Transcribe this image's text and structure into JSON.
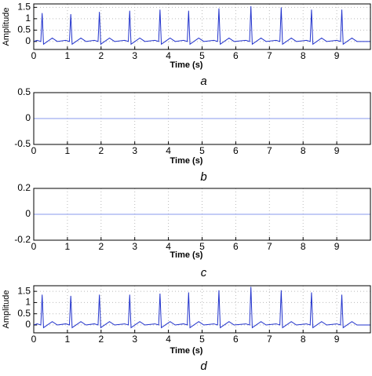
{
  "chart_data": [
    {
      "type": "line",
      "caption": "a",
      "xlabel": "Time (s)",
      "ylabel": "Amplitude",
      "x": [
        0,
        0.1,
        0.21,
        0.25,
        0.29,
        0.55,
        0.7,
        0.95,
        1.06,
        1.1,
        1.14,
        1.4,
        1.55,
        1.8,
        1.91,
        1.95,
        1.99,
        2.25,
        2.4,
        2.7,
        2.81,
        2.85,
        2.89,
        3.15,
        3.3,
        3.6,
        3.71,
        3.75,
        3.79,
        4.05,
        4.2,
        4.45,
        4.56,
        4.6,
        4.64,
        4.9,
        5.05,
        5.35,
        5.46,
        5.5,
        5.54,
        5.8,
        5.95,
        6.3,
        6.41,
        6.45,
        6.49,
        6.75,
        6.9,
        7.2,
        7.31,
        7.35,
        7.39,
        7.65,
        7.8,
        8.1,
        8.21,
        8.25,
        8.29,
        8.55,
        8.7,
        9,
        9.11,
        9.15,
        9.19,
        9.45,
        9.6,
        10
      ],
      "series": [
        {
          "color": "#2233cc",
          "values": [
            0,
            0.05,
            0,
            1.25,
            -0.12,
            0.15,
            0,
            0.05,
            0,
            1.2,
            -0.12,
            0.15,
            0,
            0.05,
            0,
            1.3,
            -0.12,
            0.15,
            0,
            0.05,
            0,
            1.35,
            -0.12,
            0.15,
            0,
            0.05,
            0,
            1.4,
            -0.12,
            0.15,
            0,
            0.05,
            0,
            1.35,
            -0.12,
            0.15,
            0,
            0.05,
            0,
            1.45,
            -0.12,
            0.15,
            0,
            0.05,
            0,
            1.55,
            -0.12,
            0.15,
            0,
            0.05,
            0,
            1.5,
            -0.12,
            0.15,
            0,
            0.05,
            0,
            1.4,
            -0.12,
            0.15,
            0,
            0.05,
            0,
            1.4,
            -0.12,
            0.15,
            0,
            0
          ]
        }
      ],
      "xlim": [
        0,
        10
      ],
      "xticks": [
        0,
        1,
        2,
        3,
        4,
        5,
        6,
        7,
        8,
        9
      ],
      "ylim": [
        -0.35,
        1.65
      ],
      "yticks": [
        0,
        0.5,
        1,
        1.5
      ],
      "grid": true
    },
    {
      "type": "line",
      "caption": "b",
      "xlabel": "Time (s)",
      "x": [
        0,
        10
      ],
      "series": [
        {
          "color": "#8899ee",
          "values": [
            0,
            0
          ]
        }
      ],
      "xlim": [
        0,
        10
      ],
      "xticks": [
        0,
        1,
        2,
        3,
        4,
        5,
        6,
        7,
        8,
        9
      ],
      "ylim": [
        -0.5,
        0.5
      ],
      "yticks": [
        -0.5,
        0,
        0.5
      ],
      "grid": true
    },
    {
      "type": "line",
      "caption": "c",
      "xlabel": "Time (s)",
      "x": [
        0,
        10
      ],
      "series": [
        {
          "color": "#8899ee",
          "values": [
            0,
            0
          ]
        }
      ],
      "xlim": [
        0,
        10
      ],
      "xticks": [
        0,
        1,
        2,
        3,
        4,
        5,
        6,
        7,
        8,
        9
      ],
      "ylim": [
        -0.2,
        0.2
      ],
      "yticks": [
        -0.2,
        0,
        0.2
      ],
      "grid": true
    },
    {
      "type": "line",
      "caption": "d",
      "xlabel": "Time (s)",
      "ylabel": "Amplitude",
      "x": [
        0,
        0.1,
        0.21,
        0.25,
        0.29,
        0.55,
        0.7,
        0.95,
        1.06,
        1.1,
        1.14,
        1.4,
        1.55,
        1.8,
        1.91,
        1.95,
        1.99,
        2.25,
        2.4,
        2.7,
        2.81,
        2.85,
        2.89,
        3.15,
        3.3,
        3.6,
        3.71,
        3.75,
        3.79,
        4.05,
        4.2,
        4.45,
        4.56,
        4.6,
        4.64,
        4.9,
        5.05,
        5.35,
        5.46,
        5.5,
        5.54,
        5.8,
        5.95,
        6.3,
        6.41,
        6.45,
        6.49,
        6.75,
        6.9,
        7.2,
        7.31,
        7.35,
        7.39,
        7.65,
        7.8,
        8.1,
        8.21,
        8.25,
        8.29,
        8.55,
        8.7,
        9,
        9.11,
        9.15,
        9.19,
        9.45,
        9.6,
        10
      ],
      "series": [
        {
          "color": "#2233cc",
          "values": [
            0,
            0.05,
            0,
            1.35,
            -0.12,
            0.15,
            0,
            0.05,
            0,
            1.3,
            -0.12,
            0.15,
            0,
            0.05,
            0,
            1.35,
            -0.12,
            0.15,
            0,
            0.05,
            0,
            1.35,
            -0.12,
            0.15,
            0,
            0.05,
            0,
            1.4,
            -0.12,
            0.15,
            0,
            0.05,
            0,
            1.45,
            -0.12,
            0.15,
            0,
            0.05,
            0,
            1.55,
            -0.12,
            0.15,
            0,
            0.05,
            0,
            1.7,
            -0.12,
            0.15,
            0,
            0.05,
            0,
            1.55,
            -0.12,
            0.15,
            0,
            0.05,
            0,
            1.45,
            -0.12,
            0.15,
            0,
            0.05,
            0,
            1.35,
            -0.12,
            0.15,
            0,
            0
          ]
        }
      ],
      "xlim": [
        0,
        10
      ],
      "xticks": [
        0,
        1,
        2,
        3,
        4,
        5,
        6,
        7,
        8,
        9
      ],
      "ylim": [
        -0.35,
        1.75
      ],
      "yticks": [
        0,
        0.5,
        1,
        1.5
      ],
      "grid": true
    }
  ]
}
